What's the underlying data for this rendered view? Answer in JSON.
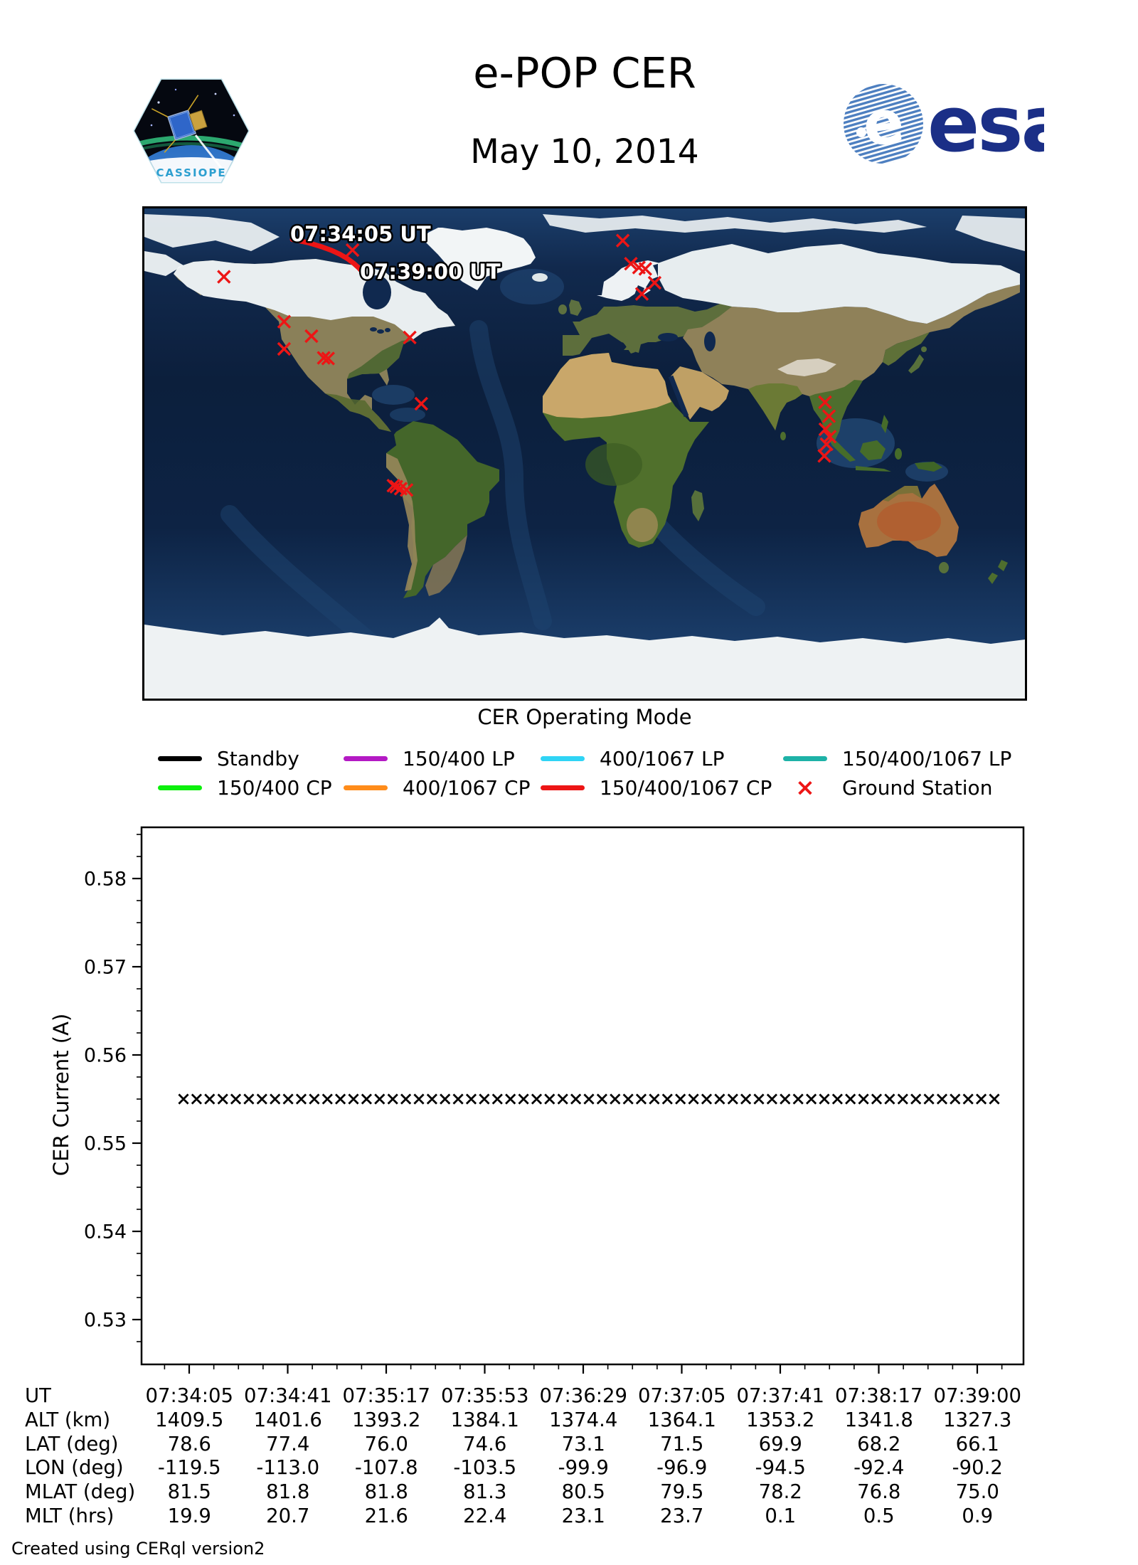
{
  "header": {
    "title": "e-POP CER",
    "date": "May 10, 2014",
    "patch_label": "CASSIOPE",
    "esa_label": "esa"
  },
  "map": {
    "start_label": "07:34:05 UT",
    "end_label": "07:39:00 UT",
    "track_color": "#ed1515",
    "station_color": "#ed1515",
    "track_lonlat": [
      [
        -119.5,
        78.6
      ],
      [
        -113.0,
        77.4
      ],
      [
        -107.8,
        76.0
      ],
      [
        -103.5,
        74.6
      ],
      [
        -99.9,
        73.1
      ],
      [
        -96.9,
        71.5
      ],
      [
        -94.5,
        69.9
      ],
      [
        -92.4,
        68.2
      ],
      [
        -90.2,
        66.1
      ]
    ],
    "ground_stations_lonlat": [
      [
        -147.5,
        64.9
      ],
      [
        -122.9,
        48.4
      ],
      [
        -111.7,
        43.1
      ],
      [
        -122.9,
        38.4
      ],
      [
        -106.7,
        35.1
      ],
      [
        -104.9,
        34.9
      ],
      [
        -94.9,
        74.7
      ],
      [
        -71.5,
        42.6
      ],
      [
        -66.8,
        18.3
      ],
      [
        -78.2,
        -11.8
      ],
      [
        -77.0,
        -12.2
      ],
      [
        -75.2,
        -12.9
      ],
      [
        -72.8,
        -13.4
      ],
      [
        15.6,
        78.2
      ],
      [
        18.9,
        69.7
      ],
      [
        22.2,
        68.3
      ],
      [
        24.8,
        67.8
      ],
      [
        28.6,
        62.7
      ],
      [
        23.4,
        58.6
      ],
      [
        98.3,
        18.8
      ],
      [
        99.9,
        13.7
      ],
      [
        98.4,
        8.9
      ],
      [
        100.2,
        6.2
      ],
      [
        98.9,
        3.4
      ],
      [
        98.0,
        -0.9
      ]
    ]
  },
  "legend": {
    "title": "CER Operating Mode",
    "rows": [
      [
        {
          "label": "Standby",
          "color": "#000000"
        },
        {
          "label": "150/400 LP",
          "color": "#b41ac4"
        },
        {
          "label": "400/1067 LP",
          "color": "#2fd4f5"
        },
        {
          "label": "150/400/1067 LP",
          "color": "#1eb2a7"
        }
      ],
      [
        {
          "label": "150/400 CP",
          "color": "#0cf00c"
        },
        {
          "label": "400/1067 CP",
          "color": "#ff8c1a"
        },
        {
          "label": "150/400/1067 CP",
          "color": "#ed1515"
        },
        {
          "label": "Ground Station",
          "color": "#ed1515",
          "glyph": "×"
        }
      ]
    ]
  },
  "chart_data": {
    "type": "scatter",
    "marker": "x",
    "marker_color": "#000000",
    "title": "",
    "xlabel": "",
    "ylabel": "CER Current (A)",
    "ylim": [
      0.525,
      0.586
    ],
    "yticks": [
      0.53,
      0.54,
      0.55,
      0.56,
      0.57,
      0.58
    ],
    "ytick_labels": [
      "0.53",
      "0.54",
      "0.55",
      "0.56",
      "0.57",
      "0.58"
    ],
    "xtick_labels": [
      "07:34:05",
      "07:34:41",
      "07:35:17",
      "07:35:53",
      "07:36:29",
      "07:37:05",
      "07:37:41",
      "07:38:17",
      "07:39:00"
    ],
    "y_value": 0.555,
    "n_points": 63,
    "grid": false,
    "legend_position": "above"
  },
  "table": {
    "rows": [
      {
        "label": "UT",
        "values": [
          "07:34:05",
          "07:34:41",
          "07:35:17",
          "07:35:53",
          "07:36:29",
          "07:37:05",
          "07:37:41",
          "07:38:17",
          "07:39:00"
        ]
      },
      {
        "label": "ALT (km)",
        "values": [
          "1409.5",
          "1401.6",
          "1393.2",
          "1384.1",
          "1374.4",
          "1364.1",
          "1353.2",
          "1341.8",
          "1327.3"
        ]
      },
      {
        "label": "LAT (deg)",
        "values": [
          "78.6",
          "77.4",
          "76.0",
          "74.6",
          "73.1",
          "71.5",
          "69.9",
          "68.2",
          "66.1"
        ]
      },
      {
        "label": "LON (deg)",
        "values": [
          "-119.5",
          "-113.0",
          "-107.8",
          "-103.5",
          "-99.9",
          "-96.9",
          "-94.5",
          "-92.4",
          "-90.2"
        ]
      },
      {
        "label": "MLAT (deg)",
        "values": [
          "81.5",
          "81.8",
          "81.8",
          "81.3",
          "80.5",
          "79.5",
          "78.2",
          "76.8",
          "75.0"
        ]
      },
      {
        "label": "MLT (hrs)",
        "values": [
          "19.9",
          "20.7",
          "21.6",
          "22.4",
          "23.1",
          "23.7",
          "0.1",
          "0.5",
          "0.9"
        ]
      }
    ]
  },
  "footer": "Created using CERql version2"
}
